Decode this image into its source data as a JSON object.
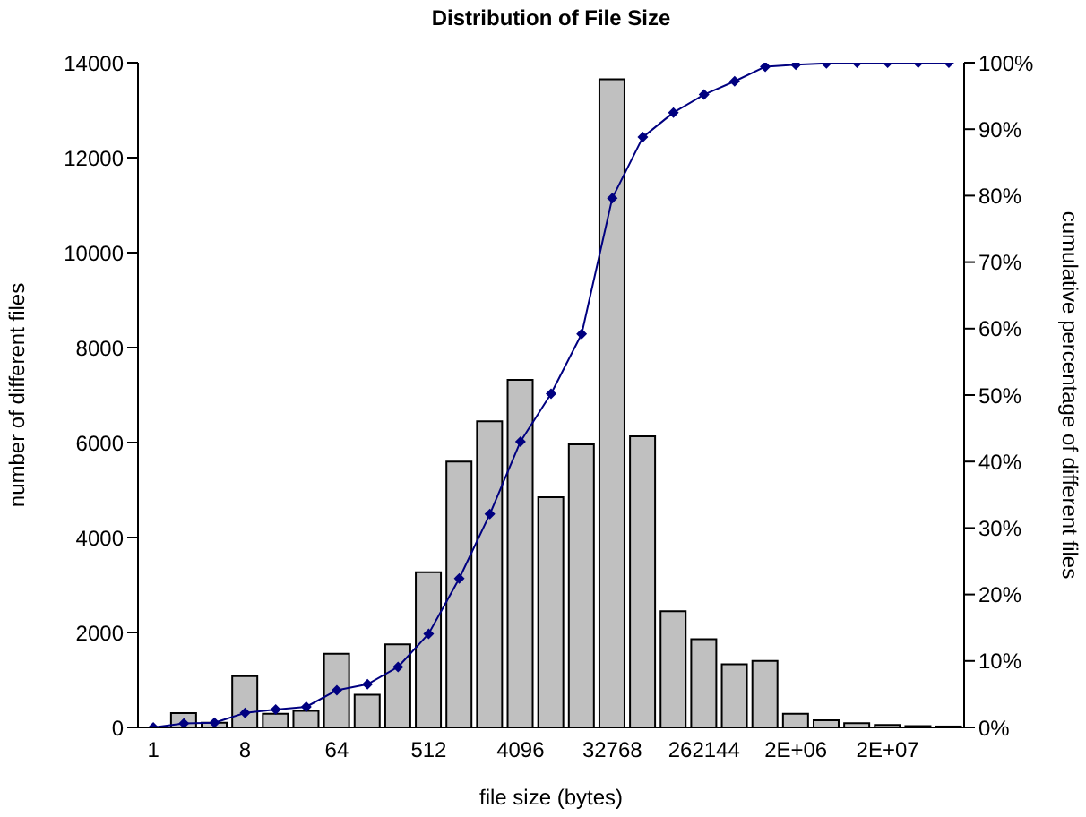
{
  "chart_data": {
    "type": "bar",
    "title": "Distribution of File Size",
    "xlabel": "file size (bytes)",
    "ylabel": "number of different files",
    "y2label": "cumulative percentage of different files",
    "categories": [
      "1",
      null,
      null,
      "8",
      null,
      null,
      "64",
      null,
      null,
      "512",
      null,
      null,
      "4096",
      null,
      null,
      "32768",
      null,
      null,
      "262144",
      null,
      null,
      "2E+06",
      null,
      null,
      "2E+07",
      null,
      null
    ],
    "series": [
      {
        "color": "#c0c0c0",
        "values": [
          0,
          300,
          100,
          1080,
          290,
          350,
          1550,
          690,
          1750,
          3270,
          5600,
          6450,
          7320,
          4850,
          5960,
          13650,
          6130,
          2450,
          1860,
          1330,
          1400,
          290,
          150,
          90,
          50,
          30,
          20
        ]
      },
      {
        "type": "line",
        "axis": "y2",
        "color": "#000080",
        "values": [
          0,
          0.6,
          0.7,
          2.2,
          2.7,
          3.1,
          5.6,
          6.5,
          9.1,
          14.1,
          22.4,
          32.1,
          43.0,
          50.2,
          59.2,
          79.6,
          88.8,
          92.5,
          95.2,
          97.2,
          99.4,
          99.7,
          99.9,
          100,
          100,
          100,
          100
        ]
      }
    ],
    "ylim": [
      0,
      14000
    ],
    "yticks": [
      0,
      2000,
      4000,
      6000,
      8000,
      10000,
      12000,
      14000
    ],
    "y2lim": [
      0,
      100
    ],
    "y2ticks": [
      {
        "value": 0,
        "label": "0%"
      },
      {
        "value": 10,
        "label": "10%"
      },
      {
        "value": 20,
        "label": "20%"
      },
      {
        "value": 30,
        "label": "30%"
      },
      {
        "value": 40,
        "label": "40%"
      },
      {
        "value": 50,
        "label": "50%"
      },
      {
        "value": 60,
        "label": "60%"
      },
      {
        "value": 70,
        "label": "70%"
      },
      {
        "value": 80,
        "label": "80%"
      },
      {
        "value": 90,
        "label": "90%"
      },
      {
        "value": 100,
        "label": "100%"
      }
    ],
    "grid": false,
    "legend": false,
    "marker": "diamond",
    "line_style": "solid"
  }
}
